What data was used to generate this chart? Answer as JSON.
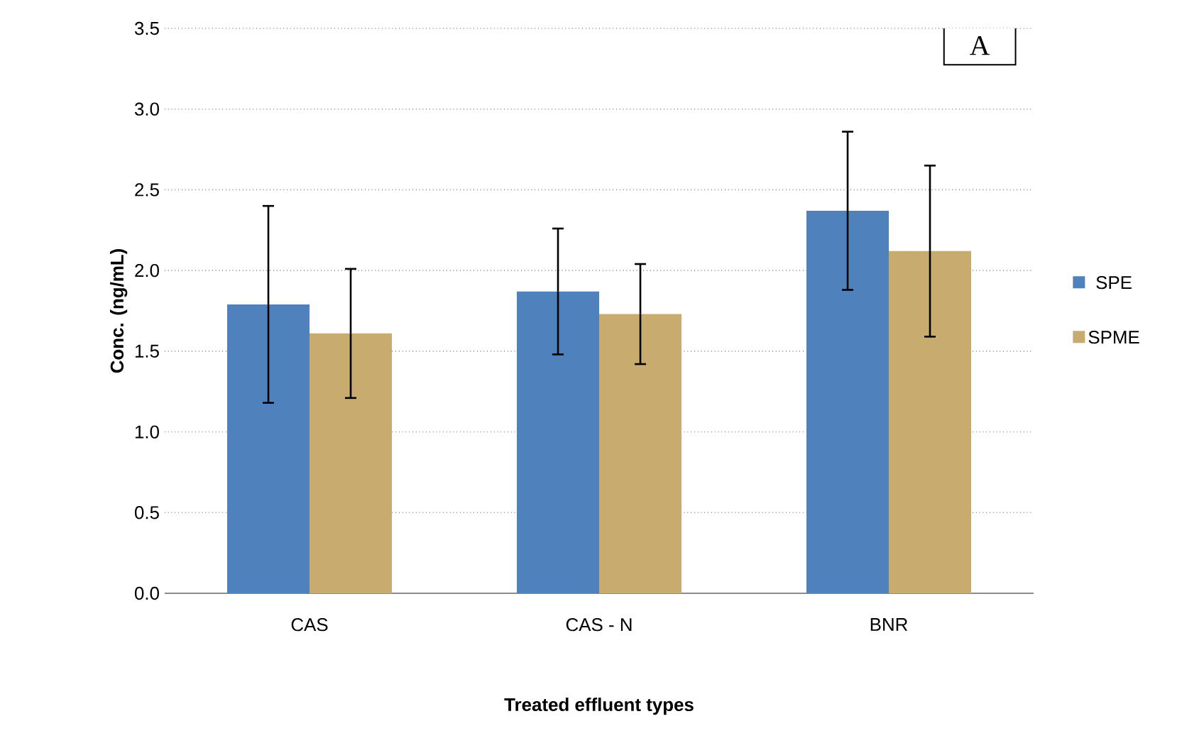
{
  "chart_data": {
    "type": "bar",
    "xlabel": "Treated effluent types",
    "ylabel": "Conc. (ng/mL)",
    "annotations": [
      "A"
    ],
    "categories": [
      "CAS",
      "CAS - N",
      "BNR"
    ],
    "series": [
      {
        "name": "SPE",
        "color": "#4f81bd",
        "values": [
          1.79,
          1.87,
          2.37
        ],
        "errors": [
          0.61,
          0.39,
          0.49
        ]
      },
      {
        "name": "SPME",
        "color": "#c8ab6e",
        "values": [
          1.61,
          1.73,
          2.12
        ],
        "errors": [
          0.4,
          0.31,
          0.53
        ]
      }
    ],
    "ylim": [
      0,
      3.5
    ],
    "yticks": [
      {
        "value": 0,
        "label": "0.0"
      },
      0.5,
      {
        "value": 1,
        "label": "1.0"
      },
      1.5,
      {
        "value": 2,
        "label": "2.0"
      },
      2.5,
      {
        "value": 3,
        "label": "3.0"
      },
      3.5
    ],
    "grid": "y",
    "legend": "right"
  }
}
